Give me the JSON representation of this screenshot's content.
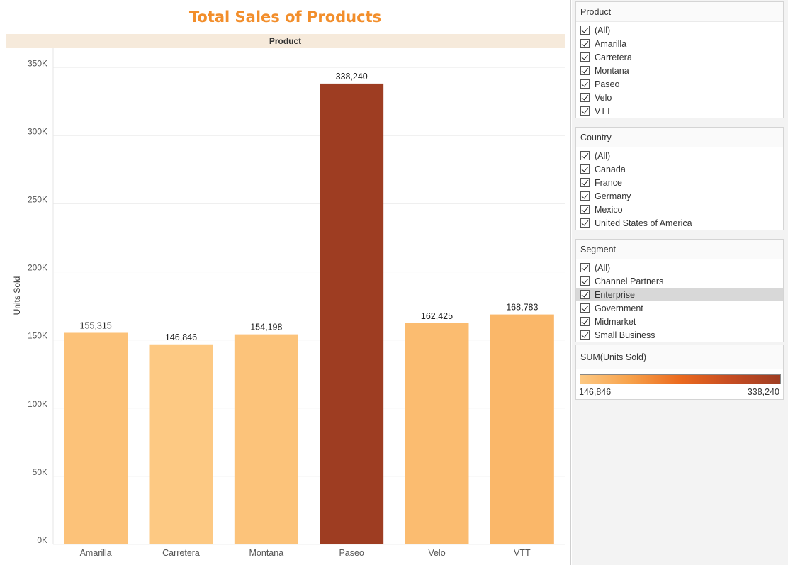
{
  "chart_data": {
    "type": "bar",
    "title": "Total Sales of Products",
    "header": "Product",
    "ylabel": "Units Sold",
    "xlabel": "",
    "categories": [
      "Amarilla",
      "Carretera",
      "Montana",
      "Paseo",
      "Velo",
      "VTT"
    ],
    "values": [
      155315,
      146846,
      154198,
      338240,
      162425,
      168783
    ],
    "value_labels": [
      "155,315",
      "146,846",
      "154,198",
      "338,240",
      "162,425",
      "168,783"
    ],
    "ylim": [
      0,
      360000
    ],
    "yticks": [
      0,
      50000,
      100000,
      150000,
      200000,
      250000,
      300000,
      350000
    ],
    "ytick_labels": [
      "0K",
      "50K",
      "100K",
      "150K",
      "200K",
      "250K",
      "300K",
      "350K"
    ],
    "grid": true,
    "color_scale": {
      "min": 146846,
      "max": 338240,
      "colors": [
        "#fdc983",
        "#f7a14a",
        "#eb6a1f",
        "#c74d22",
        "#9e3d22"
      ]
    },
    "legend_position": "right"
  },
  "filters": [
    {
      "title": "Product",
      "items": [
        "(All)",
        "Amarilla",
        "Carretera",
        "Montana",
        "Paseo",
        "Velo",
        "VTT"
      ]
    },
    {
      "title": "Country",
      "items": [
        "(All)",
        "Canada",
        "France",
        "Germany",
        "Mexico",
        "United States of America"
      ]
    },
    {
      "title": "Segment",
      "items": [
        "(All)",
        "Channel Partners",
        "Enterprise",
        "Government",
        "Midmarket",
        "Small Business"
      ],
      "highlighted": "Enterprise"
    }
  ],
  "legend": {
    "title": "SUM(Units Sold)",
    "min_label": "146,846",
    "max_label": "338,240"
  }
}
